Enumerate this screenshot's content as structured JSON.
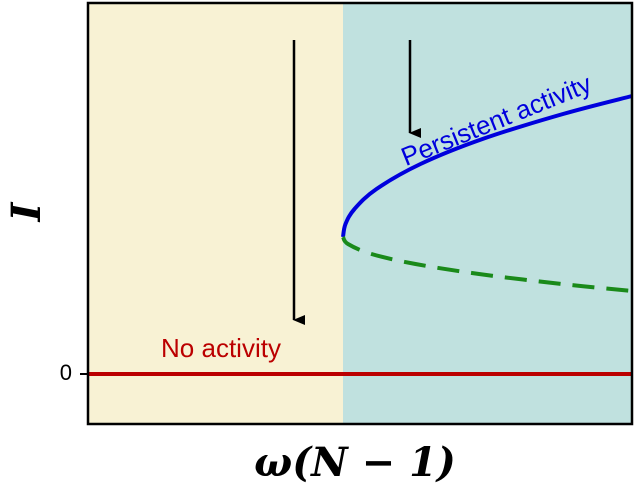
{
  "chart_data": {
    "type": "bifurcation",
    "xlabel": "ω(N − 1)",
    "ylabel": "I",
    "xlim": [
      0,
      10.88
    ],
    "ylim": [
      -1,
      7.42
    ],
    "yticks": [
      0
    ],
    "region_colors": [
      "#f8f2d4",
      "#c0e1df"
    ],
    "series": [
      {
        "color": "#bb0000",
        "dash": false,
        "x": [
          0,
          10.88
        ],
        "values": [
          0,
          0
        ]
      },
      {
        "color": "#0000dd",
        "dash": false,
        "x": [
          5.1,
          5.15,
          5.33,
          5.77,
          6.65,
          7.89,
          9.5,
          10.88
        ],
        "values": [
          2.74,
          3.0,
          3.3,
          3.7,
          4.2,
          4.7,
          5.2,
          5.56
        ]
      },
      {
        "color": "#1a8a1a",
        "dash": true,
        "x": [
          5.1,
          5.2,
          5.67,
          6.55,
          7.82,
          9.48,
          10.89
        ],
        "values": [
          2.74,
          2.6,
          2.4,
          2.2,
          2.0,
          1.8,
          1.66
        ]
      }
    ],
    "annotations": [
      {
        "text": "No activity",
        "color": "#bb0000"
      },
      {
        "text": "Persistent activity",
        "color": "#0000dd"
      }
    ]
  }
}
